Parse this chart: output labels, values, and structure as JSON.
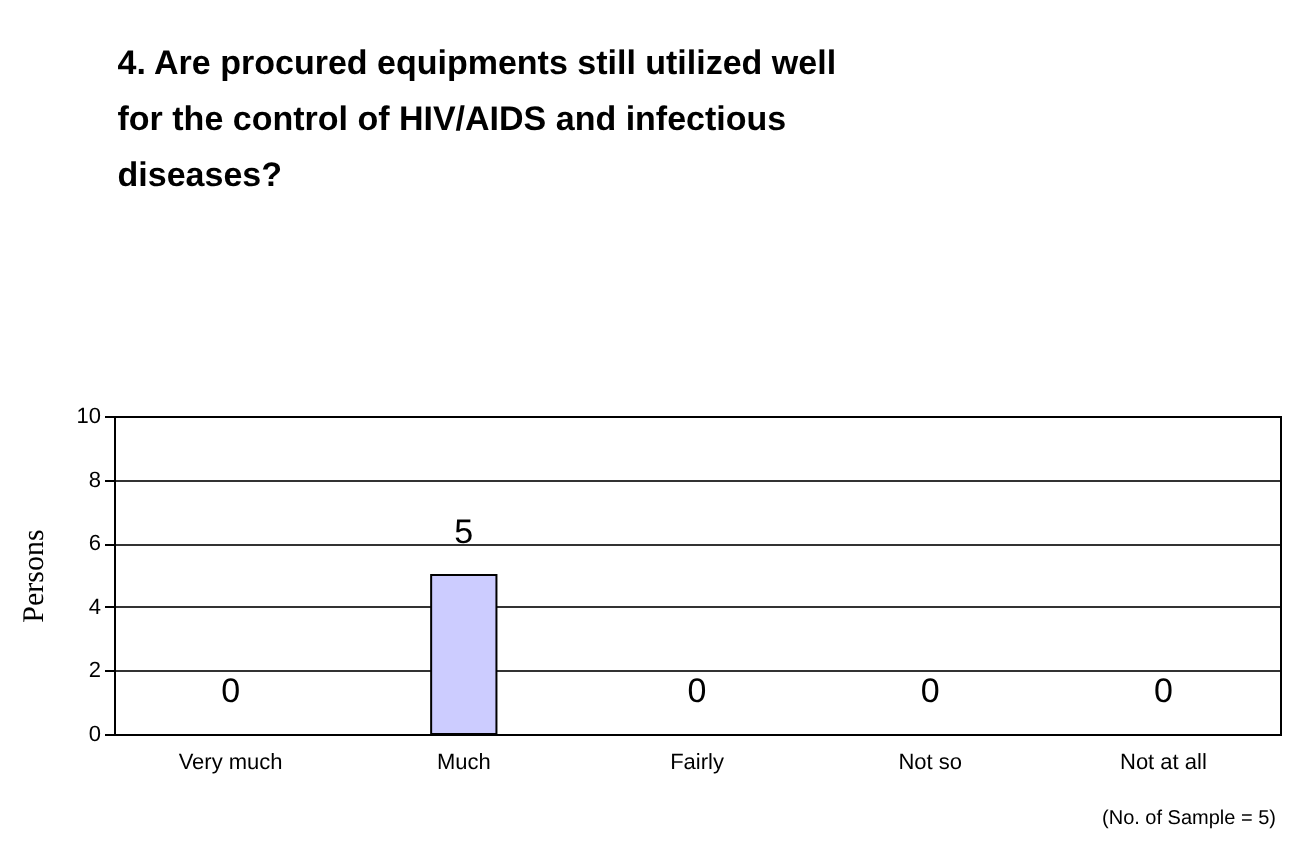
{
  "chart_data": {
    "type": "bar",
    "title": "4. Are procured equipments still utilized well for the control of HIV/AIDS and infectious diseases?",
    "categories": [
      "Very much",
      "Much",
      "Fairly",
      "Not so",
      "Not at all"
    ],
    "values": [
      0,
      5,
      0,
      0,
      0
    ],
    "color": "#ccccff",
    "ylabel": "Persons",
    "ylim": [
      0,
      10
    ],
    "yticks": [
      0,
      2,
      4,
      6,
      8,
      10
    ],
    "grid": "y",
    "data_labels": true,
    "annotations": [
      "(No. of  Sample = 5)"
    ]
  }
}
